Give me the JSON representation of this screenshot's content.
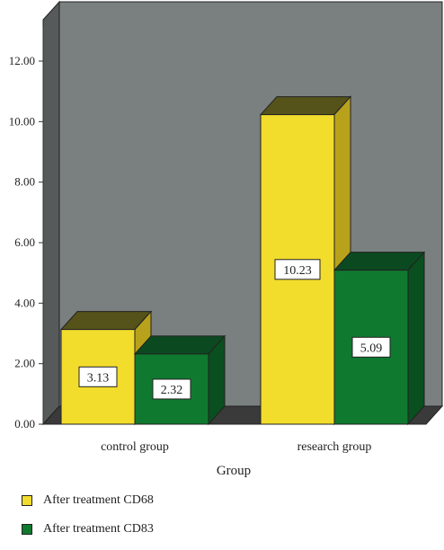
{
  "chart_data": {
    "type": "bar",
    "categories": [
      "control group",
      "research group"
    ],
    "series": [
      {
        "name": "After treatment CD68",
        "values": [
          3.13,
          10.23
        ],
        "labels": [
          "3.13",
          "10.23"
        ],
        "color": "#f2dc2c",
        "side_color": "#b8a21c",
        "top_color": "#55521a"
      },
      {
        "name": "After treatment CD83",
        "values": [
          2.32,
          5.09
        ],
        "labels": [
          "2.32",
          "5.09"
        ],
        "color": "#0f7a2f",
        "side_color": "#0a4f1f",
        "top_color": "#0b4a20"
      }
    ],
    "xlabel": "Group",
    "ylabel": "",
    "ylim": [
      0,
      12
    ],
    "yticks": [
      "0.00",
      "2.00",
      "4.00",
      "6.00",
      "8.00",
      "10.00",
      "12.00"
    ],
    "grid": false,
    "legend_position": "bottom-left",
    "style": "3d",
    "colors": {
      "back_wall": "#7a7f7f",
      "side_wall": "#565a5a",
      "floor": "#3a3a3a"
    }
  }
}
